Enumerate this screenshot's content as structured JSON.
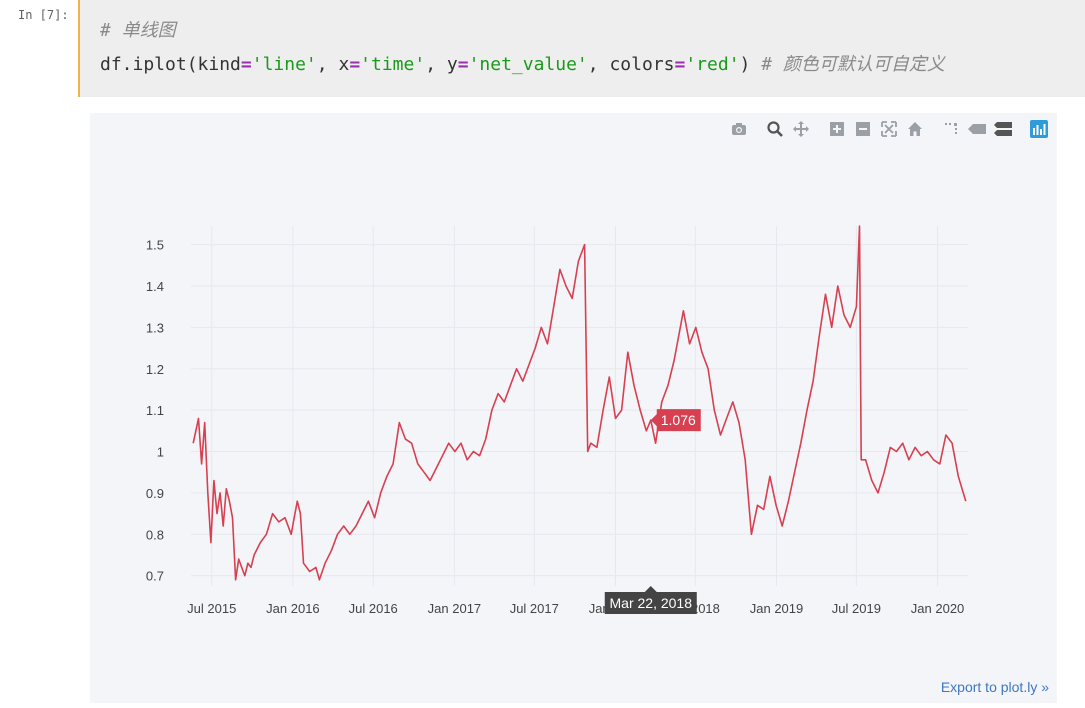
{
  "cell": {
    "prompt": "In [7]:",
    "code_line1_comment": "# 单线图",
    "code_line2": {
      "fn": "df.iplot(",
      "kind_kw": "kind",
      "kind_val": "'line'",
      "x_kw": "x",
      "x_val": "'time'",
      "y_kw": "y",
      "y_val": "'net_value'",
      "colors_kw": "colors",
      "colors_val": "'red'",
      "close": ")",
      "comment": "# 颜色可默认可自定义"
    }
  },
  "modebar": {
    "icons": [
      "camera-icon",
      "zoom-icon",
      "pan-icon",
      "zoom-in-icon",
      "zoom-out-icon",
      "autoscale-icon",
      "home-icon",
      "spike-lines-icon",
      "hover-closest-icon",
      "hover-compare-icon",
      "plotly-logo-icon"
    ]
  },
  "export_link": "Export to plot.ly »",
  "hover": {
    "value_label": "1.076",
    "date_label": "Mar 22, 2018",
    "value": 1.076,
    "date": "2018-03-22"
  },
  "colors": {
    "line": "#d64050",
    "grid": "#e6e8ee",
    "background": "#f4f5f9"
  },
  "chart_data": {
    "type": "line",
    "title": "",
    "xlabel": "",
    "ylabel": "",
    "x_range": [
      "2015-05-15",
      "2020-03-10"
    ],
    "ylim": [
      0.675,
      1.545
    ],
    "y_ticks": [
      0.7,
      0.8,
      0.9,
      1,
      1.1,
      1.2,
      1.3,
      1.4,
      1.5
    ],
    "y_tick_labels": [
      "0.7",
      "0.8",
      "0.9",
      "1",
      "1.1",
      "1.2",
      "1.3",
      "1.4",
      "1.5"
    ],
    "x_ticks": [
      "2015-07-01",
      "2016-01-01",
      "2016-07-01",
      "2017-01-01",
      "2017-07-01",
      "2018-01-01",
      "2018-07-01",
      "2019-01-01",
      "2019-07-01",
      "2020-01-01"
    ],
    "x_tick_labels": [
      "Jul 2015",
      "Jan 2016",
      "Jul 2016",
      "Jan 2017",
      "Jul 2017",
      "Jan 2018",
      "Jul 2018",
      "Jan 2019",
      "Jul 2019",
      "Jan 2020"
    ],
    "grid": true,
    "series": [
      {
        "color": "#d64050",
        "points": [
          [
            "2015-05-20",
            1.02
          ],
          [
            "2015-06-01",
            1.08
          ],
          [
            "2015-06-08",
            0.97
          ],
          [
            "2015-06-15",
            1.07
          ],
          [
            "2015-06-22",
            0.9
          ],
          [
            "2015-06-29",
            0.78
          ],
          [
            "2015-07-06",
            0.93
          ],
          [
            "2015-07-13",
            0.85
          ],
          [
            "2015-07-20",
            0.9
          ],
          [
            "2015-07-27",
            0.82
          ],
          [
            "2015-08-03",
            0.91
          ],
          [
            "2015-08-10",
            0.88
          ],
          [
            "2015-08-17",
            0.84
          ],
          [
            "2015-08-24",
            0.69
          ],
          [
            "2015-08-31",
            0.74
          ],
          [
            "2015-09-07",
            0.72
          ],
          [
            "2015-09-14",
            0.7
          ],
          [
            "2015-09-21",
            0.73
          ],
          [
            "2015-09-28",
            0.72
          ],
          [
            "2015-10-05",
            0.75
          ],
          [
            "2015-10-19",
            0.78
          ],
          [
            "2015-11-02",
            0.8
          ],
          [
            "2015-11-16",
            0.85
          ],
          [
            "2015-11-30",
            0.83
          ],
          [
            "2015-12-14",
            0.84
          ],
          [
            "2015-12-28",
            0.8
          ],
          [
            "2016-01-04",
            0.84
          ],
          [
            "2016-01-11",
            0.88
          ],
          [
            "2016-01-18",
            0.85
          ],
          [
            "2016-01-25",
            0.73
          ],
          [
            "2016-02-08",
            0.71
          ],
          [
            "2016-02-22",
            0.72
          ],
          [
            "2016-03-01",
            0.69
          ],
          [
            "2016-03-14",
            0.73
          ],
          [
            "2016-03-28",
            0.76
          ],
          [
            "2016-04-11",
            0.8
          ],
          [
            "2016-04-25",
            0.82
          ],
          [
            "2016-05-09",
            0.8
          ],
          [
            "2016-05-23",
            0.82
          ],
          [
            "2016-06-06",
            0.85
          ],
          [
            "2016-06-20",
            0.88
          ],
          [
            "2016-07-04",
            0.84
          ],
          [
            "2016-07-18",
            0.9
          ],
          [
            "2016-08-01",
            0.94
          ],
          [
            "2016-08-15",
            0.97
          ],
          [
            "2016-08-29",
            1.07
          ],
          [
            "2016-09-12",
            1.03
          ],
          [
            "2016-09-26",
            1.02
          ],
          [
            "2016-10-10",
            0.97
          ],
          [
            "2016-10-24",
            0.95
          ],
          [
            "2016-11-07",
            0.93
          ],
          [
            "2016-11-21",
            0.96
          ],
          [
            "2016-12-05",
            0.99
          ],
          [
            "2016-12-19",
            1.02
          ],
          [
            "2017-01-02",
            1.0
          ],
          [
            "2017-01-16",
            1.02
          ],
          [
            "2017-01-30",
            0.98
          ],
          [
            "2017-02-13",
            1.0
          ],
          [
            "2017-02-27",
            0.99
          ],
          [
            "2017-03-13",
            1.03
          ],
          [
            "2017-03-27",
            1.1
          ],
          [
            "2017-04-10",
            1.14
          ],
          [
            "2017-04-24",
            1.12
          ],
          [
            "2017-05-08",
            1.16
          ],
          [
            "2017-05-22",
            1.2
          ],
          [
            "2017-06-05",
            1.17
          ],
          [
            "2017-06-19",
            1.21
          ],
          [
            "2017-07-03",
            1.25
          ],
          [
            "2017-07-17",
            1.3
          ],
          [
            "2017-07-31",
            1.26
          ],
          [
            "2017-08-14",
            1.35
          ],
          [
            "2017-08-28",
            1.44
          ],
          [
            "2017-09-11",
            1.4
          ],
          [
            "2017-09-25",
            1.37
          ],
          [
            "2017-10-09",
            1.46
          ],
          [
            "2017-10-23",
            1.5
          ],
          [
            "2017-10-30",
            1.0
          ],
          [
            "2017-11-06",
            1.02
          ],
          [
            "2017-11-20",
            1.01
          ],
          [
            "2017-12-04",
            1.1
          ],
          [
            "2017-12-18",
            1.18
          ],
          [
            "2018-01-01",
            1.08
          ],
          [
            "2018-01-15",
            1.1
          ],
          [
            "2018-01-29",
            1.24
          ],
          [
            "2018-02-12",
            1.16
          ],
          [
            "2018-02-26",
            1.1
          ],
          [
            "2018-03-12",
            1.05
          ],
          [
            "2018-03-22",
            1.076
          ],
          [
            "2018-04-02",
            1.02
          ],
          [
            "2018-04-16",
            1.12
          ],
          [
            "2018-04-30",
            1.16
          ],
          [
            "2018-05-14",
            1.22
          ],
          [
            "2018-05-28",
            1.3
          ],
          [
            "2018-06-04",
            1.34
          ],
          [
            "2018-06-18",
            1.26
          ],
          [
            "2018-07-02",
            1.3
          ],
          [
            "2018-07-16",
            1.24
          ],
          [
            "2018-07-30",
            1.2
          ],
          [
            "2018-08-13",
            1.1
          ],
          [
            "2018-08-27",
            1.04
          ],
          [
            "2018-09-10",
            1.08
          ],
          [
            "2018-09-24",
            1.12
          ],
          [
            "2018-10-08",
            1.07
          ],
          [
            "2018-10-22",
            0.98
          ],
          [
            "2018-11-05",
            0.8
          ],
          [
            "2018-11-19",
            0.87
          ],
          [
            "2018-12-03",
            0.86
          ],
          [
            "2018-12-17",
            0.94
          ],
          [
            "2018-12-31",
            0.87
          ],
          [
            "2019-01-14",
            0.82
          ],
          [
            "2019-01-28",
            0.88
          ],
          [
            "2019-02-11",
            0.95
          ],
          [
            "2019-02-25",
            1.02
          ],
          [
            "2019-03-11",
            1.1
          ],
          [
            "2019-03-25",
            1.17
          ],
          [
            "2019-04-08",
            1.28
          ],
          [
            "2019-04-22",
            1.38
          ],
          [
            "2019-05-06",
            1.3
          ],
          [
            "2019-05-20",
            1.4
          ],
          [
            "2019-06-03",
            1.33
          ],
          [
            "2019-06-17",
            1.3
          ],
          [
            "2019-07-01",
            1.35
          ],
          [
            "2019-07-08",
            1.545
          ],
          [
            "2019-07-12",
            0.98
          ],
          [
            "2019-07-22",
            0.98
          ],
          [
            "2019-08-05",
            0.93
          ],
          [
            "2019-08-19",
            0.9
          ],
          [
            "2019-09-02",
            0.95
          ],
          [
            "2019-09-16",
            1.01
          ],
          [
            "2019-09-30",
            1.0
          ],
          [
            "2019-10-14",
            1.02
          ],
          [
            "2019-10-28",
            0.98
          ],
          [
            "2019-11-11",
            1.01
          ],
          [
            "2019-11-25",
            0.99
          ],
          [
            "2019-12-09",
            1.0
          ],
          [
            "2019-12-23",
            0.98
          ],
          [
            "2020-01-06",
            0.97
          ],
          [
            "2020-01-20",
            1.04
          ],
          [
            "2020-02-03",
            1.02
          ],
          [
            "2020-02-17",
            0.94
          ],
          [
            "2020-03-02",
            0.89
          ],
          [
            "2020-03-05",
            0.88
          ]
        ]
      }
    ]
  }
}
